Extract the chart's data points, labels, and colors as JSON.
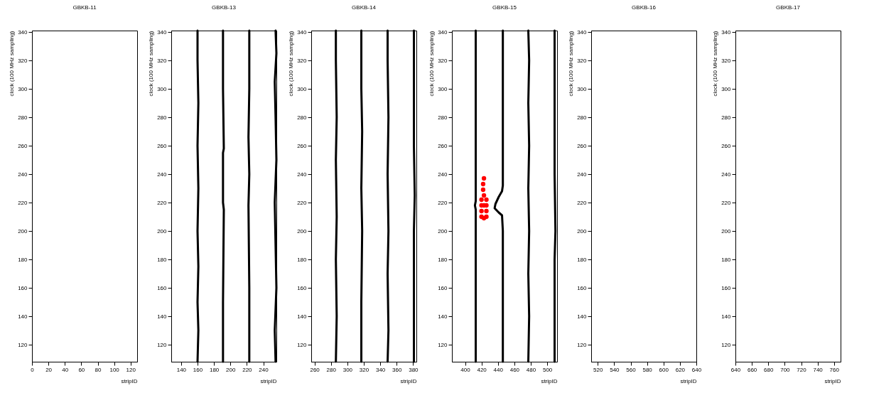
{
  "chart_data": [
    {
      "type": "scatter",
      "title": "GBKB-11",
      "xlabel": "stripID",
      "ylabel": "clock (100 MHz sampling)",
      "xlim": [
        0,
        128
      ],
      "xticks": [
        0,
        20,
        40,
        60,
        80,
        100,
        120
      ],
      "ylim": [
        108,
        341
      ],
      "yticks": [
        120,
        140,
        160,
        180,
        200,
        220,
        240,
        260,
        280,
        300,
        320,
        340
      ]
    },
    {
      "type": "scatter",
      "title": "GBKB-13",
      "xlabel": "stripID",
      "ylabel": "clock (100 MHz sampling)",
      "xlim": [
        128,
        256
      ],
      "xticks": [
        140,
        160,
        180,
        200,
        220,
        240
      ],
      "ylim": [
        108,
        341
      ],
      "yticks": [
        120,
        140,
        160,
        180,
        200,
        220,
        240,
        260,
        280,
        300,
        320,
        340
      ],
      "series": [
        {
          "type": "line",
          "color": "#000000",
          "x": [
            160,
            161,
            160,
            161,
            160,
            161,
            160,
            161,
            160,
            160
          ],
          "values": [
            108,
            130,
            150,
            175,
            200,
            230,
            260,
            290,
            320,
            341
          ]
        },
        {
          "type": "line",
          "color": "#000000",
          "x": [
            191,
            191,
            192,
            191,
            191,
            192,
            191,
            191
          ],
          "values": [
            108,
            150,
            215,
            220,
            255,
            258,
            300,
            341
          ]
        },
        {
          "type": "line",
          "color": "#000000",
          "x": [
            223,
            223,
            222,
            223,
            222,
            223,
            223
          ],
          "values": [
            108,
            160,
            218,
            240,
            266,
            300,
            341
          ]
        },
        {
          "type": "line",
          "color": "#000000",
          "x": [
            255,
            254,
            256,
            255,
            254,
            256,
            255,
            254,
            256,
            255
          ],
          "values": [
            108,
            130,
            160,
            190,
            220,
            250,
            280,
            305,
            325,
            341
          ]
        }
      ]
    },
    {
      "type": "scatter",
      "title": "GBKB-14",
      "xlabel": "stripID",
      "ylabel": "clock (100 MHz sampling)",
      "xlim": [
        256,
        384
      ],
      "xticks": [
        260,
        280,
        300,
        320,
        340,
        360,
        380
      ],
      "ylim": [
        108,
        341
      ],
      "yticks": [
        120,
        140,
        160,
        180,
        200,
        220,
        240,
        260,
        280,
        300,
        320,
        340
      ],
      "series": [
        {
          "type": "line",
          "color": "#000000",
          "x": [
            286,
            287,
            286,
            287,
            286,
            287,
            286,
            286
          ],
          "values": [
            108,
            140,
            180,
            210,
            250,
            280,
            320,
            341
          ]
        },
        {
          "type": "line",
          "color": "#000000",
          "x": [
            317,
            317,
            318,
            317,
            318,
            317,
            317
          ],
          "values": [
            108,
            150,
            200,
            230,
            270,
            300,
            341
          ]
        },
        {
          "type": "line",
          "color": "#000000",
          "x": [
            349,
            350,
            349,
            350,
            349,
            350,
            349,
            349
          ],
          "values": [
            108,
            130,
            170,
            200,
            240,
            280,
            320,
            341
          ]
        },
        {
          "type": "line",
          "color": "#000000",
          "x": [
            381,
            381,
            382,
            381,
            381
          ],
          "values": [
            108,
            200,
            225,
            260,
            341
          ]
        }
      ]
    },
    {
      "type": "scatter",
      "title": "GBKB-15",
      "xlabel": "stripID",
      "ylabel": "clock (100 MHz sampling)",
      "xlim": [
        384,
        512
      ],
      "xticks": [
        400,
        420,
        440,
        460,
        480,
        500
      ],
      "ylim": [
        108,
        341
      ],
      "yticks": [
        120,
        140,
        160,
        180,
        200,
        220,
        240,
        260,
        280,
        300,
        320,
        340
      ],
      "series": [
        {
          "type": "line",
          "color": "#000000",
          "x": [
            413,
            413,
            412,
            413,
            413
          ],
          "values": [
            108,
            215,
            218,
            221,
            341
          ]
        },
        {
          "type": "line",
          "color": "#000000",
          "x": [
            446,
            446,
            445,
            441,
            436,
            437,
            441,
            445,
            446,
            446
          ],
          "values": [
            108,
            200,
            211,
            213,
            216,
            219,
            224,
            228,
            232,
            341
          ]
        },
        {
          "type": "line",
          "color": "#000000",
          "x": [
            477,
            478,
            477,
            478,
            477,
            478,
            477,
            478,
            477
          ],
          "values": [
            108,
            140,
            170,
            200,
            230,
            260,
            290,
            320,
            341
          ]
        },
        {
          "type": "line",
          "color": "#000000",
          "x": [
            509,
            509,
            510,
            509,
            509
          ],
          "values": [
            108,
            180,
            200,
            240,
            341
          ]
        },
        {
          "type": "scatter",
          "color": "#ff0000",
          "x": [
            423,
            422,
            422,
            423,
            420,
            426,
            420,
            426,
            420,
            426,
            423,
            420,
            426,
            423
          ],
          "values": [
            237,
            233,
            229,
            225,
            222,
            222,
            218,
            218,
            214,
            214,
            218,
            210,
            210,
            209
          ]
        }
      ]
    },
    {
      "type": "scatter",
      "title": "GBKB-16",
      "xlabel": "stripID",
      "ylabel": "clock (100 MHz sampling)",
      "xlim": [
        512,
        640
      ],
      "xticks": [
        520,
        540,
        560,
        580,
        600,
        620,
        640
      ],
      "ylim": [
        108,
        341
      ],
      "yticks": [
        120,
        140,
        160,
        180,
        200,
        220,
        240,
        260,
        280,
        300,
        320,
        340
      ]
    },
    {
      "type": "scatter",
      "title": "GBKB-17",
      "xlabel": "stripID",
      "ylabel": "clock (100 MHz sampling)",
      "xlim": [
        640,
        768
      ],
      "xticks": [
        640,
        660,
        680,
        700,
        720,
        740,
        760
      ],
      "ylim": [
        108,
        341
      ],
      "yticks": [
        120,
        140,
        160,
        180,
        200,
        220,
        240,
        260,
        280,
        300,
        320,
        340
      ]
    }
  ]
}
